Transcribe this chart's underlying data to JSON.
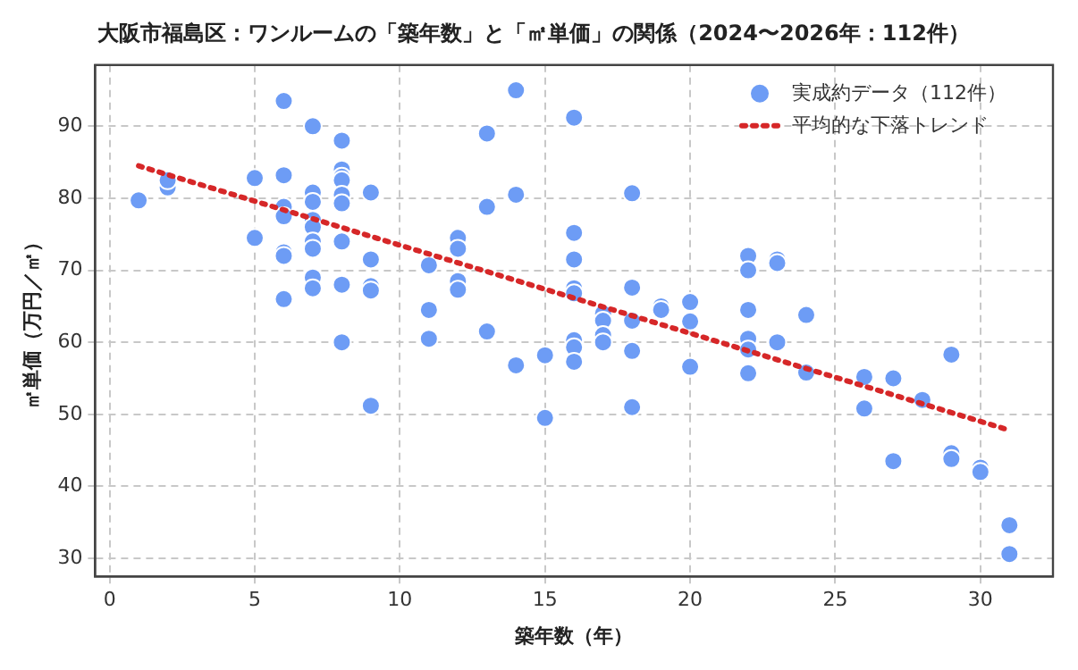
{
  "chart_data": {
    "type": "scatter",
    "title": "大阪市福島区：ワンルームの「築年数」と「㎡単価」の関係（2024〜2026年：112件）",
    "xlabel": "築年数（年）",
    "ylabel": "㎡単価（万円／㎡）",
    "xlim": [
      -0.5,
      32.5
    ],
    "ylim": [
      27.5,
      98.5
    ],
    "xticks": [
      0,
      5,
      10,
      15,
      20,
      25,
      30
    ],
    "yticks": [
      30,
      40,
      50,
      60,
      70,
      80,
      90
    ],
    "grid": true,
    "legend": "top right",
    "series": [
      {
        "name": "実成約データ（112件）",
        "marker": "circle",
        "color": "#6d9cf5",
        "x": [
          1,
          2,
          2,
          5,
          5,
          6,
          6,
          6,
          6,
          6,
          6,
          6,
          7,
          7,
          7,
          7,
          7,
          7,
          7,
          7,
          7,
          8,
          8,
          8,
          8,
          8,
          8,
          8,
          8,
          8,
          9,
          9,
          9,
          9,
          9,
          11,
          11,
          11,
          12,
          12,
          12,
          12,
          13,
          13,
          13,
          14,
          14,
          14,
          15,
          15,
          16,
          16,
          16,
          16,
          16,
          16,
          16,
          16,
          17,
          17,
          17,
          17,
          18,
          18,
          18,
          18,
          18,
          19,
          19,
          20,
          20,
          20,
          22,
          22,
          22,
          22,
          22,
          22,
          23,
          23,
          23,
          24,
          24,
          26,
          26,
          27,
          27,
          28,
          29,
          29,
          29,
          30,
          30,
          31,
          31
        ],
        "values": [
          79.7,
          81.5,
          82.5,
          82.8,
          74.5,
          93.5,
          83.2,
          78.8,
          77.5,
          72.5,
          72,
          66,
          90,
          80.8,
          79.5,
          77,
          76,
          74,
          73,
          69,
          67.5,
          88,
          84,
          83,
          82.5,
          80.5,
          79.3,
          74,
          68,
          60,
          80.8,
          71.5,
          67.8,
          67.2,
          51.2,
          70.7,
          64.5,
          60.5,
          74.5,
          73,
          68.5,
          67.3,
          89,
          78.8,
          61.5,
          95,
          80.5,
          56.8,
          58.2,
          49.5,
          91.2,
          75.2,
          71.5,
          67.5,
          66.8,
          60.3,
          59.3,
          57.3,
          64,
          63,
          61,
          60,
          80.7,
          67.6,
          63,
          58.8,
          51,
          65,
          64.5,
          65.6,
          62.9,
          56.6,
          72,
          70,
          64.5,
          60.5,
          59,
          55.7,
          71.5,
          71,
          60,
          63.8,
          55.8,
          55.2,
          50.8,
          55,
          43.5,
          52,
          58.3,
          44.6,
          43.8,
          42.6,
          42,
          34.6,
          30.6
        ]
      },
      {
        "name": "平均的な下落トレンド",
        "type": "line",
        "marker": "none",
        "line_style": "dotted",
        "color": "#d62728",
        "x": [
          1,
          31
        ],
        "values": [
          84.5,
          47.8
        ]
      }
    ]
  }
}
